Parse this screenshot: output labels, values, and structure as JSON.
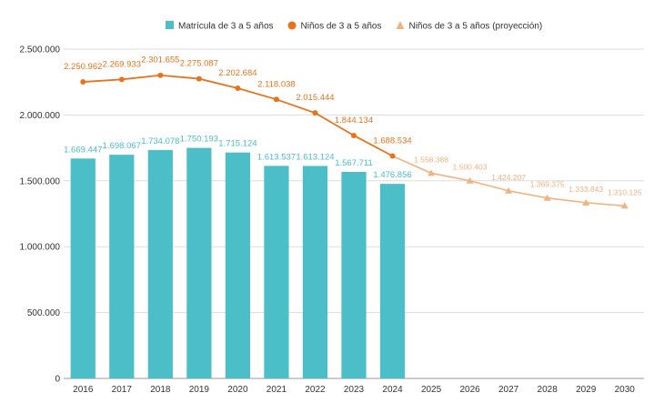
{
  "chart_data": {
    "type": "bar",
    "title": "",
    "xlabel": "",
    "ylabel": "",
    "ylim": [
      0,
      2500000
    ],
    "yticks": [
      0,
      500000,
      1000000,
      1500000,
      2000000,
      2500000
    ],
    "ytick_labels": [
      "0",
      "500.000",
      "1.000.000",
      "1.500.000",
      "2.000.000",
      "2.500.000"
    ],
    "grid": true,
    "legend_position": "top-center",
    "categories": [
      "2016",
      "2017",
      "2018",
      "2019",
      "2020",
      "2021",
      "2022",
      "2023",
      "2024",
      "2025",
      "2026",
      "2027",
      "2028",
      "2029",
      "2030"
    ],
    "series": [
      {
        "name": "Matrícula de 3 a 5 años",
        "kind": "bar",
        "color": "#4bbec7",
        "x": [
          "2016",
          "2017",
          "2018",
          "2019",
          "2020",
          "2021",
          "2022",
          "2023",
          "2024"
        ],
        "values": [
          1669447,
          1698067,
          1734078,
          1750193,
          1715124,
          1613537,
          1613124,
          1567711,
          1476856
        ],
        "labels": [
          "1.669.447",
          "1.698.067",
          "1.734.078",
          "1.750.193",
          "1.715.124",
          "1.613.537",
          "1.613.124",
          "1.567.711",
          "1.476.856"
        ]
      },
      {
        "name": "Niños de 3 a 5 años",
        "kind": "line",
        "marker": "circle",
        "color": "#e8731c",
        "x": [
          "2016",
          "2017",
          "2018",
          "2019",
          "2020",
          "2021",
          "2022",
          "2023",
          "2024"
        ],
        "values": [
          2250962,
          2269933,
          2301655,
          2275087,
          2202684,
          2118038,
          2015444,
          1844134,
          1688534
        ],
        "labels": [
          "2.250.962",
          "2.269.933",
          "2.301.655",
          "2.275.087",
          "2.202.684",
          "2.118.038",
          "2.015.444",
          "1.844.134",
          "1.688.534"
        ]
      },
      {
        "name": "Niños de 3 a 5 años (proyección)",
        "kind": "line",
        "marker": "triangle",
        "color": "#f4b27e",
        "x": [
          "2024",
          "2025",
          "2026",
          "2027",
          "2028",
          "2029",
          "2030"
        ],
        "values": [
          1688534,
          1558388,
          1500403,
          1424207,
          1369375,
          1333843,
          1310125
        ],
        "labels": [
          "",
          "1.558.388",
          "1.500.403",
          "1.424.207",
          "1.369.375",
          "1.333.843",
          "1.310.125"
        ]
      }
    ]
  }
}
